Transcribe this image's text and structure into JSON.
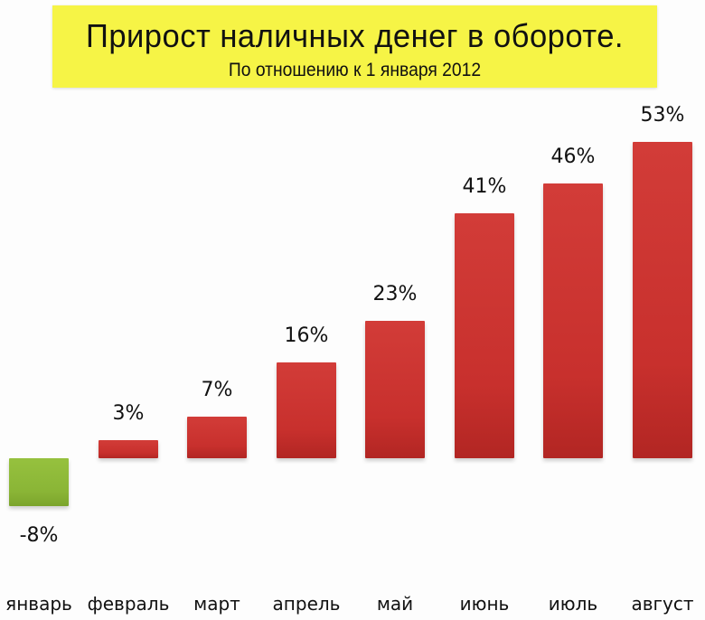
{
  "header": {
    "title": "Прирост наличных денег в обороте.",
    "subtitle": "По отношению  к 1 января 2012"
  },
  "colors": {
    "title_background": "#f6f446",
    "positive_bar": "#c8302d",
    "negative_bar": "#8ab536"
  },
  "bars": [
    {
      "label": "январь",
      "value": -8,
      "value_label": "-8%"
    },
    {
      "label": "февраль",
      "value": 3,
      "value_label": "3%"
    },
    {
      "label": "март",
      "value": 7,
      "value_label": "7%"
    },
    {
      "label": "апрель",
      "value": 16,
      "value_label": "16%"
    },
    {
      "label": "май",
      "value": 23,
      "value_label": "23%"
    },
    {
      "label": "июнь",
      "value": 41,
      "value_label": "41%"
    },
    {
      "label": "июль",
      "value": 46,
      "value_label": "46%"
    },
    {
      "label": "август",
      "value": 53,
      "value_label": "53%"
    }
  ],
  "chart_data": {
    "type": "bar",
    "title": "Прирост наличных денег в обороте.",
    "subtitle": "По отношению  к 1 января 2012",
    "categories": [
      "январь",
      "февраль",
      "март",
      "апрель",
      "май",
      "июнь",
      "июль",
      "август"
    ],
    "values": [
      -8,
      3,
      7,
      16,
      23,
      41,
      46,
      53
    ],
    "data_labels": [
      "-8%",
      "3%",
      "7%",
      "16%",
      "23%",
      "41%",
      "46%",
      "53%"
    ],
    "xlabel": "",
    "ylabel": "",
    "unit": "%",
    "grid": false,
    "legend": null,
    "bar_colors": [
      "#8ab536",
      "#c8302d",
      "#c8302d",
      "#c8302d",
      "#c8302d",
      "#c8302d",
      "#c8302d",
      "#c8302d"
    ]
  }
}
